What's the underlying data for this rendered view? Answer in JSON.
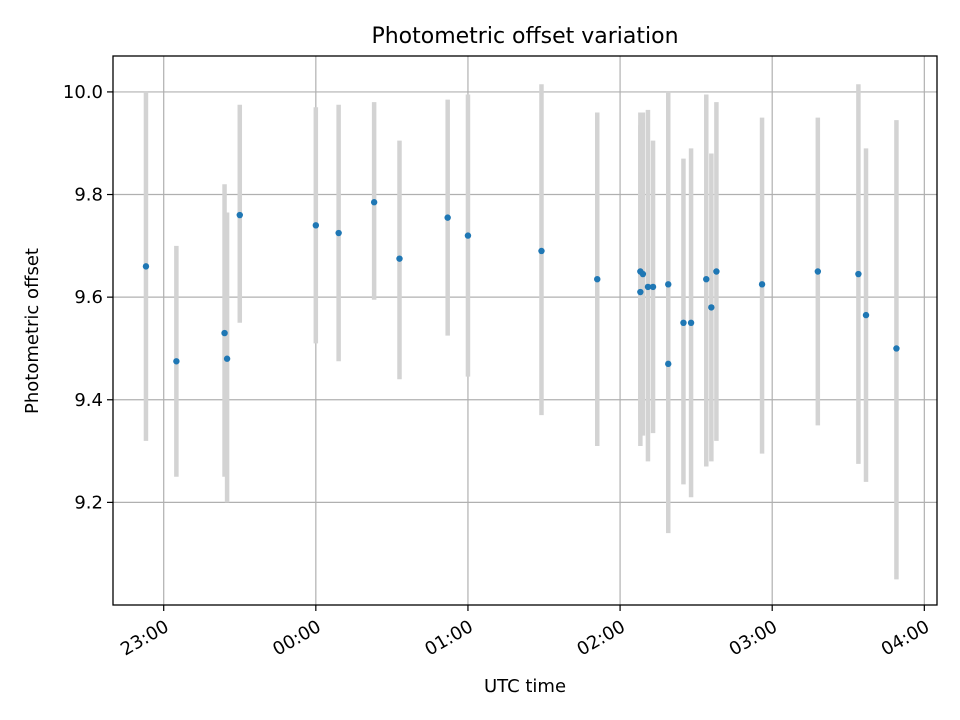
{
  "chart_data": {
    "type": "scatter",
    "title": "Photometric offset variation",
    "xlabel": "UTC time",
    "ylabel": "Photometric offset",
    "xlim": [
      "22:40",
      "04:05"
    ],
    "ylim": [
      9.0,
      10.07
    ],
    "grid": true,
    "x_ticks": [
      "23:00",
      "00:00",
      "01:00",
      "02:00",
      "03:00",
      "04:00"
    ],
    "y_ticks": [
      9.2,
      9.4,
      9.6,
      9.8,
      10.0
    ],
    "y_tick_labels": [
      "9.2",
      "9.4",
      "9.6",
      "9.8",
      "10.0"
    ],
    "colors": {
      "marker": "#1f77b4",
      "errorbar": "#d3d3d3",
      "grid": "#b0b0b0"
    },
    "series": [
      {
        "points": [
          {
            "x": "22:53",
            "y": 9.66,
            "low": 9.32,
            "high": 10.0
          },
          {
            "x": "23:05",
            "y": 9.475,
            "low": 9.25,
            "high": 9.7
          },
          {
            "x": "23:24",
            "y": 9.53,
            "low": 9.25,
            "high": 9.82
          },
          {
            "x": "23:25",
            "y": 9.48,
            "low": 9.2,
            "high": 9.765
          },
          {
            "x": "23:30",
            "y": 9.76,
            "low": 9.55,
            "high": 9.975
          },
          {
            "x": "00:00",
            "y": 9.74,
            "low": 9.51,
            "high": 9.97
          },
          {
            "x": "00:09",
            "y": 9.725,
            "low": 9.475,
            "high": 9.975
          },
          {
            "x": "00:23",
            "y": 9.785,
            "low": 9.595,
            "high": 9.98
          },
          {
            "x": "00:33",
            "y": 9.675,
            "low": 9.44,
            "high": 9.905
          },
          {
            "x": "00:52",
            "y": 9.755,
            "low": 9.525,
            "high": 9.985
          },
          {
            "x": "01:00",
            "y": 9.72,
            "low": 9.445,
            "high": 9.995
          },
          {
            "x": "01:29",
            "y": 9.69,
            "low": 9.37,
            "high": 10.015
          },
          {
            "x": "01:51",
            "y": 9.635,
            "low": 9.31,
            "high": 9.96
          },
          {
            "x": "02:08",
            "y": 9.61,
            "low": 9.31,
            "high": 9.96
          },
          {
            "x": "02:08",
            "y": 9.65,
            "low": 9.36,
            "high": 9.935
          },
          {
            "x": "02:09",
            "y": 9.645,
            "low": 9.33,
            "high": 9.96
          },
          {
            "x": "02:11",
            "y": 9.62,
            "low": 9.28,
            "high": 9.965
          },
          {
            "x": "02:13",
            "y": 9.62,
            "low": 9.335,
            "high": 9.905
          },
          {
            "x": "02:19",
            "y": 9.625,
            "low": 9.26,
            "high": 10.0
          },
          {
            "x": "02:19",
            "y": 9.47,
            "low": 9.14,
            "high": 9.8
          },
          {
            "x": "02:25",
            "y": 9.55,
            "low": 9.235,
            "high": 9.87
          },
          {
            "x": "02:28",
            "y": 9.55,
            "low": 9.21,
            "high": 9.89
          },
          {
            "x": "02:34",
            "y": 9.635,
            "low": 9.27,
            "high": 9.995
          },
          {
            "x": "02:36",
            "y": 9.58,
            "low": 9.28,
            "high": 9.88
          },
          {
            "x": "02:38",
            "y": 9.65,
            "low": 9.32,
            "high": 9.98
          },
          {
            "x": "02:56",
            "y": 9.625,
            "low": 9.295,
            "high": 9.95
          },
          {
            "x": "03:18",
            "y": 9.65,
            "low": 9.35,
            "high": 9.95
          },
          {
            "x": "03:34",
            "y": 9.645,
            "low": 9.275,
            "high": 10.015
          },
          {
            "x": "03:37",
            "y": 9.565,
            "low": 9.24,
            "high": 9.89
          },
          {
            "x": "03:49",
            "y": 9.5,
            "low": 9.05,
            "high": 9.945
          }
        ]
      }
    ]
  }
}
